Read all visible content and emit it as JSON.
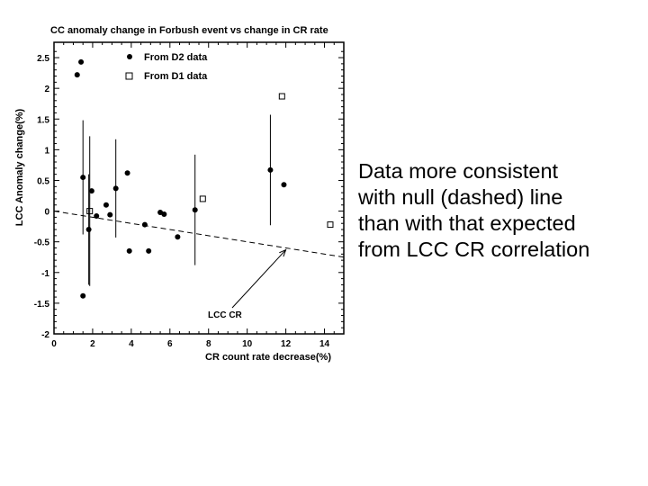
{
  "chart_data": {
    "type": "scatter",
    "title": "CC anomaly change in Forbush event vs change in CR rate",
    "xlabel": "CR count rate decrease(%)",
    "ylabel": "LCC Anomaly change(%)",
    "xlim": [
      0,
      15
    ],
    "ylim": [
      -2,
      2.75
    ],
    "xticks": [
      0,
      2,
      4,
      6,
      8,
      10,
      12,
      14
    ],
    "xtick_labels": [
      "0",
      "2",
      "4",
      "6",
      "8",
      "10",
      "12",
      "14"
    ],
    "yticks": [
      -2,
      -1.5,
      -1,
      -0.5,
      0,
      0.5,
      1,
      1.5,
      2,
      2.5
    ],
    "ytick_labels": [
      "-2",
      "-1.5",
      "-1",
      "-0.5",
      "0",
      "0.5",
      "1",
      "1.5",
      "2",
      "2.5"
    ],
    "legend_position": "top-center",
    "series": [
      {
        "name": "From D2 data",
        "marker": "filled-circle",
        "points": [
          {
            "x": 1.2,
            "y": 2.22
          },
          {
            "x": 1.4,
            "y": 2.43
          },
          {
            "x": 1.5,
            "y": 0.55,
            "err": 0.93
          },
          {
            "x": 1.5,
            "y": -1.38
          },
          {
            "x": 1.8,
            "y": -0.3,
            "err": 0.9
          },
          {
            "x": 1.95,
            "y": 0.33
          },
          {
            "x": 2.2,
            "y": -0.08
          },
          {
            "x": 2.7,
            "y": 0.1
          },
          {
            "x": 2.9,
            "y": -0.06
          },
          {
            "x": 3.2,
            "y": 0.37,
            "err": 0.8
          },
          {
            "x": 3.8,
            "y": 0.62
          },
          {
            "x": 3.9,
            "y": -0.65
          },
          {
            "x": 4.7,
            "y": -0.22
          },
          {
            "x": 4.9,
            "y": -0.65
          },
          {
            "x": 5.5,
            "y": -0.02
          },
          {
            "x": 5.7,
            "y": -0.05
          },
          {
            "x": 6.4,
            "y": -0.42
          },
          {
            "x": 7.3,
            "y": 0.02,
            "err": 0.9
          },
          {
            "x": 11.2,
            "y": 0.67,
            "err": 0.9
          },
          {
            "x": 11.9,
            "y": 0.43
          }
        ]
      },
      {
        "name": "From D1 data",
        "marker": "open-square",
        "points": [
          {
            "x": 1.85,
            "y": 0.0,
            "err": 1.22
          },
          {
            "x": 7.7,
            "y": 0.2
          },
          {
            "x": 11.8,
            "y": 1.87
          },
          {
            "x": 14.3,
            "y": -0.22
          }
        ]
      }
    ],
    "reference_line": {
      "x": [
        0,
        15
      ],
      "y": [
        0.0,
        -0.75
      ]
    },
    "annotation": {
      "text": "LCC CR",
      "points_to": {
        "x": 12,
        "y": -0.63
      }
    }
  },
  "note": {
    "lines": [
      "Data more consistent",
      "with null (dashed) line",
      "than with that expected",
      "from LCC CR correlation"
    ]
  }
}
